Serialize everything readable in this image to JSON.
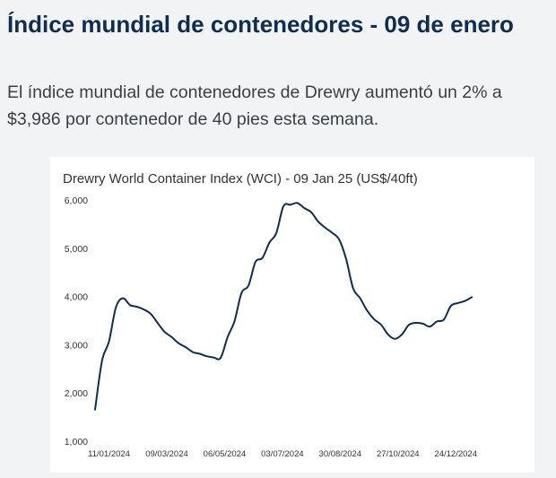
{
  "article": {
    "headline": "Índice mundial de contenedores - 09 de enero",
    "summary": "El índice mundial de contenedores de Drewry aumentó un 2% a $3,986 por contenedor de 40 pies esta semana."
  },
  "chart_data": {
    "type": "line",
    "title": "Drewry World Container Index (WCI) - 09 Jan 25 (US$/40ft)",
    "xlabel": "",
    "ylabel": "",
    "ylim": [
      1000,
      6000
    ],
    "y_ticks": [
      "1,000",
      "2,000",
      "3,000",
      "4,000",
      "5,000",
      "6,000"
    ],
    "x_ticks": [
      "11/01/2024",
      "09/03/2024",
      "06/05/2024",
      "03/07/2024",
      "30/08/2024",
      "27/10/2024",
      "24/12/2024"
    ],
    "grid": false,
    "legend": "none",
    "line_color": "#0f2d52",
    "series": [
      {
        "x": [
          "2023-12-28",
          "2024-01-04",
          "2024-01-11",
          "2024-01-18",
          "2024-01-25",
          "2024-02-01",
          "2024-02-08",
          "2024-02-15",
          "2024-02-22",
          "2024-02-29",
          "2024-03-07",
          "2024-03-14",
          "2024-03-21",
          "2024-03-28",
          "2024-04-04",
          "2024-04-11",
          "2024-04-18",
          "2024-04-25",
          "2024-05-02",
          "2024-05-09",
          "2024-05-16",
          "2024-05-23",
          "2024-05-30",
          "2024-06-06",
          "2024-06-13",
          "2024-06-20",
          "2024-06-27",
          "2024-07-04",
          "2024-07-11",
          "2024-07-18",
          "2024-07-25",
          "2024-08-01",
          "2024-08-08",
          "2024-08-15",
          "2024-08-22",
          "2024-08-29",
          "2024-09-05",
          "2024-09-12",
          "2024-09-19",
          "2024-09-26",
          "2024-10-03",
          "2024-10-10",
          "2024-10-17",
          "2024-10-24",
          "2024-10-31",
          "2024-11-07",
          "2024-11-14",
          "2024-11-21",
          "2024-11-28",
          "2024-12-05",
          "2024-12-12",
          "2024-12-19",
          "2024-12-26",
          "2025-01-02",
          "2025-01-09"
        ],
        "values": [
          1656,
          2670,
          3072,
          3777,
          3964,
          3824,
          3786,
          3731,
          3638,
          3445,
          3263,
          3157,
          3029,
          2950,
          2847,
          2813,
          2762,
          2736,
          2726,
          3159,
          3493,
          4072,
          4226,
          4716,
          4801,
          5117,
          5319,
          5868,
          5901,
          5937,
          5833,
          5746,
          5551,
          5426,
          5319,
          5181,
          4775,
          4168,
          3964,
          3710,
          3530,
          3417,
          3213,
          3123,
          3213,
          3413,
          3453,
          3436,
          3375,
          3482,
          3521,
          3803,
          3862,
          3905,
          3986
        ]
      }
    ]
  }
}
